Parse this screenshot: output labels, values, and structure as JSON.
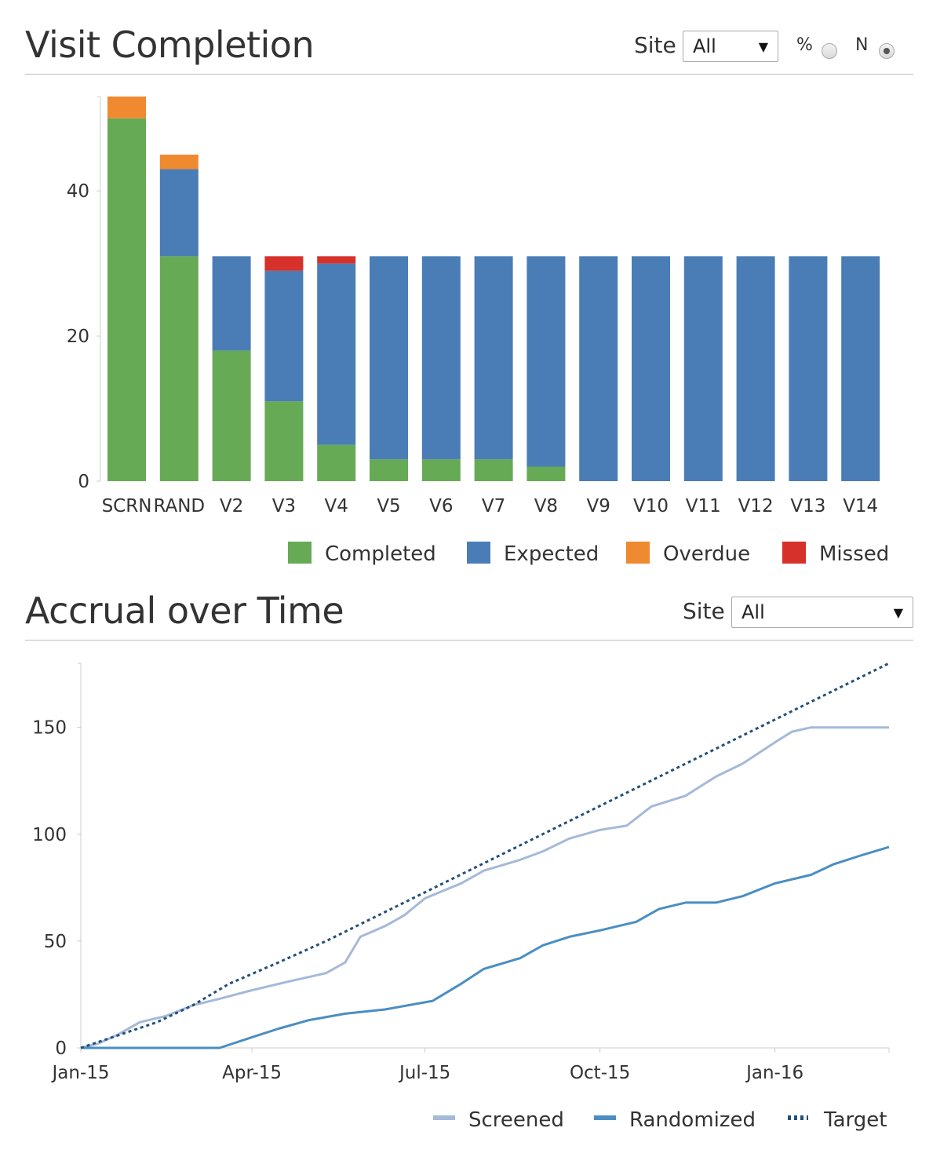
{
  "visit_panel": {
    "title": "Visit Completion",
    "site_label": "Site",
    "site_value": "All",
    "pct_label": "%",
    "n_label": "N",
    "mode": "N"
  },
  "accrual_panel": {
    "title": "Accrual over Time",
    "site_label": "Site",
    "site_value": "All"
  },
  "icons": {
    "dropdown": "caret-down-icon",
    "radio": "radio-icon"
  },
  "chart_data": [
    {
      "type": "bar",
      "stacked": true,
      "title": "Visit Completion",
      "categories": [
        "SCRN",
        "RAND",
        "V2",
        "V3",
        "V4",
        "V5",
        "V6",
        "V7",
        "V8",
        "V9",
        "V10",
        "V11",
        "V12",
        "V13",
        "V14"
      ],
      "series": [
        {
          "name": "Completed",
          "color": "#66aa55",
          "values": [
            50,
            31,
            18,
            11,
            5,
            3,
            3,
            3,
            2,
            0,
            0,
            0,
            0,
            0,
            0
          ]
        },
        {
          "name": "Expected",
          "color": "#4a7db5",
          "values": [
            0,
            12,
            13,
            18,
            25,
            28,
            28,
            28,
            29,
            31,
            31,
            31,
            31,
            31,
            31
          ]
        },
        {
          "name": "Overdue",
          "color": "#ef8a30",
          "values": [
            3,
            2,
            0,
            0,
            0,
            0,
            0,
            0,
            0,
            0,
            0,
            0,
            0,
            0,
            0
          ]
        },
        {
          "name": "Missed",
          "color": "#d6312b",
          "values": [
            0,
            0,
            0,
            2,
            1,
            0,
            0,
            0,
            0,
            0,
            0,
            0,
            0,
            0,
            0
          ]
        }
      ],
      "yticks": [
        0,
        20,
        40
      ],
      "ylim": [
        0,
        53
      ],
      "legend_position": "bottom-right"
    },
    {
      "type": "line",
      "title": "Accrual over Time",
      "xdomain": [
        "2015-01-01",
        "2016-03-01"
      ],
      "xticks": [
        {
          "label": "Jan-15",
          "date": "2015-01-01"
        },
        {
          "label": "Apr-15",
          "date": "2015-04-01"
        },
        {
          "label": "Jul-15",
          "date": "2015-07-01"
        },
        {
          "label": "Oct-15",
          "date": "2015-10-01"
        },
        {
          "label": "Jan-16",
          "date": "2016-01-01"
        }
      ],
      "yticks": [
        0,
        50,
        100,
        150
      ],
      "ylim": [
        0,
        180
      ],
      "series": [
        {
          "name": "Screened",
          "color": "#a5b9d8",
          "style": "solid",
          "points": [
            [
              "2015-01-01",
              0
            ],
            [
              "2015-01-10",
              2
            ],
            [
              "2015-01-20",
              6
            ],
            [
              "2015-02-01",
              12
            ],
            [
              "2015-02-15",
              15
            ],
            [
              "2015-03-01",
              20
            ],
            [
              "2015-03-15",
              23
            ],
            [
              "2015-04-01",
              27
            ],
            [
              "2015-04-20",
              31
            ],
            [
              "2015-05-10",
              35
            ],
            [
              "2015-05-20",
              40
            ],
            [
              "2015-05-28",
              52
            ],
            [
              "2015-06-10",
              57
            ],
            [
              "2015-06-20",
              62
            ],
            [
              "2015-07-01",
              70
            ],
            [
              "2015-07-20",
              77
            ],
            [
              "2015-08-01",
              83
            ],
            [
              "2015-08-20",
              88
            ],
            [
              "2015-09-01",
              92
            ],
            [
              "2015-09-15",
              98
            ],
            [
              "2015-10-01",
              102
            ],
            [
              "2015-10-15",
              104
            ],
            [
              "2015-10-28",
              113
            ],
            [
              "2015-11-15",
              118
            ],
            [
              "2015-12-01",
              127
            ],
            [
              "2015-12-15",
              133
            ],
            [
              "2016-01-01",
              143
            ],
            [
              "2016-01-10",
              148
            ],
            [
              "2016-01-20",
              150
            ],
            [
              "2016-03-01",
              150
            ]
          ]
        },
        {
          "name": "Randomized",
          "color": "#4a8ec2",
          "style": "solid",
          "points": [
            [
              "2015-01-01",
              0
            ],
            [
              "2015-03-15",
              0
            ],
            [
              "2015-04-01",
              5
            ],
            [
              "2015-04-15",
              9
            ],
            [
              "2015-05-01",
              13
            ],
            [
              "2015-05-20",
              16
            ],
            [
              "2015-06-10",
              18
            ],
            [
              "2015-07-05",
              22
            ],
            [
              "2015-07-20",
              30
            ],
            [
              "2015-08-01",
              37
            ],
            [
              "2015-08-20",
              42
            ],
            [
              "2015-09-01",
              48
            ],
            [
              "2015-09-15",
              52
            ],
            [
              "2015-10-01",
              55
            ],
            [
              "2015-10-20",
              59
            ],
            [
              "2015-11-01",
              65
            ],
            [
              "2015-11-15",
              68
            ],
            [
              "2015-12-01",
              68
            ],
            [
              "2015-12-15",
              71
            ],
            [
              "2016-01-01",
              77
            ],
            [
              "2016-01-20",
              81
            ],
            [
              "2016-02-01",
              86
            ],
            [
              "2016-02-15",
              90
            ],
            [
              "2016-03-01",
              94
            ]
          ]
        },
        {
          "name": "Target",
          "color": "#23507a",
          "style": "dotted",
          "points": [
            [
              "2015-01-01",
              0
            ],
            [
              "2015-02-10",
              12
            ],
            [
              "2015-03-01",
              20
            ],
            [
              "2015-03-20",
              30
            ],
            [
              "2015-04-15",
              40
            ],
            [
              "2015-05-10",
              50
            ],
            [
              "2016-03-01",
              180
            ]
          ]
        }
      ],
      "legend_position": "bottom-right"
    }
  ]
}
